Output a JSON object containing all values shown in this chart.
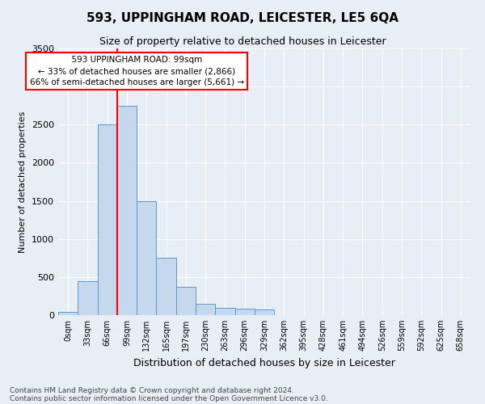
{
  "title": "593, UPPINGHAM ROAD, LEICESTER, LE5 6QA",
  "subtitle": "Size of property relative to detached houses in Leicester",
  "xlabel": "Distribution of detached houses by size in Leicester",
  "ylabel": "Number of detached properties",
  "footnote1": "Contains HM Land Registry data © Crown copyright and database right 2024.",
  "footnote2": "Contains public sector information licensed under the Open Government Licence v3.0.",
  "annotation_line1": "593 UPPINGHAM ROAD: 99sqm",
  "annotation_line2": "← 33% of detached houses are smaller (2,866)",
  "annotation_line3": "66% of semi-detached houses are larger (5,661) →",
  "bar_color": "#c5d8ed",
  "bar_edge_color": "#5a9ac8",
  "red_line_bin_index": 3,
  "ylim": [
    0,
    3500
  ],
  "yticks": [
    0,
    500,
    1000,
    1500,
    2000,
    2500,
    3000,
    3500
  ],
  "bin_labels": [
    "0sqm",
    "33sqm",
    "66sqm",
    "99sqm",
    "132sqm",
    "165sqm",
    "197sqm",
    "230sqm",
    "263sqm",
    "296sqm",
    "329sqm",
    "362sqm",
    "395sqm",
    "428sqm",
    "461sqm",
    "494sqm",
    "526sqm",
    "559sqm",
    "592sqm",
    "625sqm",
    "658sqm"
  ],
  "bar_values": [
    40,
    450,
    2500,
    2750,
    1500,
    750,
    375,
    150,
    100,
    80,
    70,
    0,
    0,
    0,
    0,
    0,
    0,
    0,
    0,
    0,
    0
  ],
  "background_color": "#e8eef5",
  "plot_bg_color": "#e8eef5",
  "grid_color": "#ffffff",
  "title_fontsize": 11,
  "subtitle_fontsize": 9,
  "ylabel_fontsize": 8,
  "xlabel_fontsize": 9,
  "tick_fontsize": 7,
  "footnote_fontsize": 6.5
}
